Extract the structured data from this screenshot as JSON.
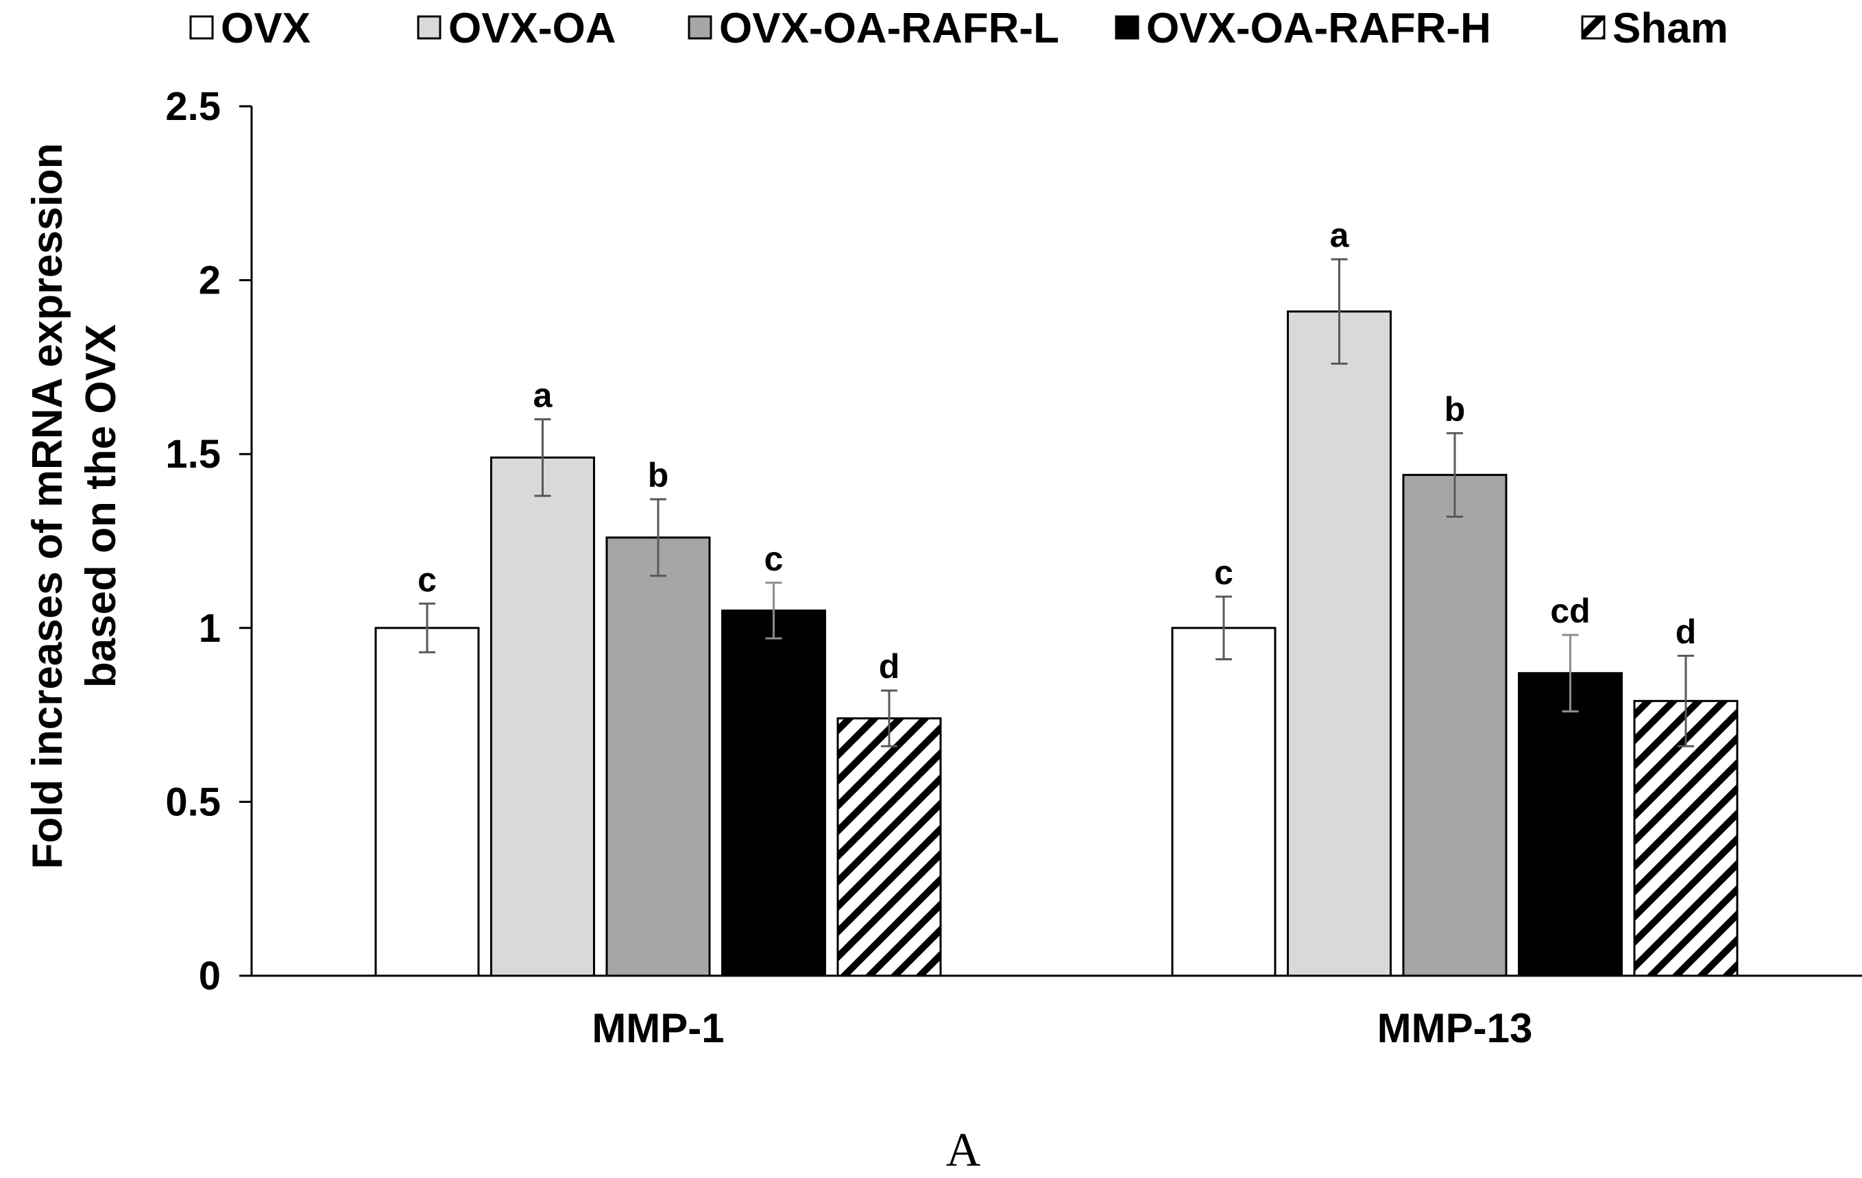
{
  "chart_data": {
    "type": "bar",
    "categories": [
      "MMP-1",
      "MMP-13"
    ],
    "series": [
      {
        "name": "OVX",
        "color": "#ffffff",
        "pattern": "solid",
        "values": [
          1.0,
          1.0
        ],
        "errors": [
          0.07,
          0.09
        ],
        "labels": [
          "c",
          "c"
        ]
      },
      {
        "name": "OVX-OA",
        "color": "#d9d9d9",
        "pattern": "solid",
        "values": [
          1.49,
          1.91
        ],
        "errors": [
          0.11,
          0.15
        ],
        "labels": [
          "a",
          "a"
        ]
      },
      {
        "name": "OVX-OA-RAFR-L",
        "color": "#a6a6a6",
        "pattern": "solid",
        "values": [
          1.26,
          1.44
        ],
        "errors": [
          0.11,
          0.12
        ],
        "labels": [
          "b",
          "b"
        ]
      },
      {
        "name": "OVX-OA-RAFR-H",
        "color": "#000000",
        "pattern": "solid",
        "values": [
          1.05,
          0.87
        ],
        "errors": [
          0.08,
          0.11
        ],
        "labels": [
          "c",
          "cd"
        ]
      },
      {
        "name": "Sham",
        "color": "#ffffff",
        "pattern": "hatch",
        "values": [
          0.74,
          0.79
        ],
        "errors": [
          0.08,
          0.13
        ],
        "labels": [
          "d",
          "d"
        ]
      }
    ],
    "yticks": [
      "0",
      "0.5",
      "1",
      "1.5",
      "2",
      "2.5"
    ],
    "ytick_values": [
      0,
      0.5,
      1,
      1.5,
      2,
      2.5
    ],
    "ylim": [
      0,
      2.5
    ],
    "ylabel": [
      "Fold increases of mRNA expression",
      "based on the OVX"
    ],
    "xlabel": "",
    "title": "",
    "legend_position": "top",
    "grid": false,
    "caption": "A"
  }
}
